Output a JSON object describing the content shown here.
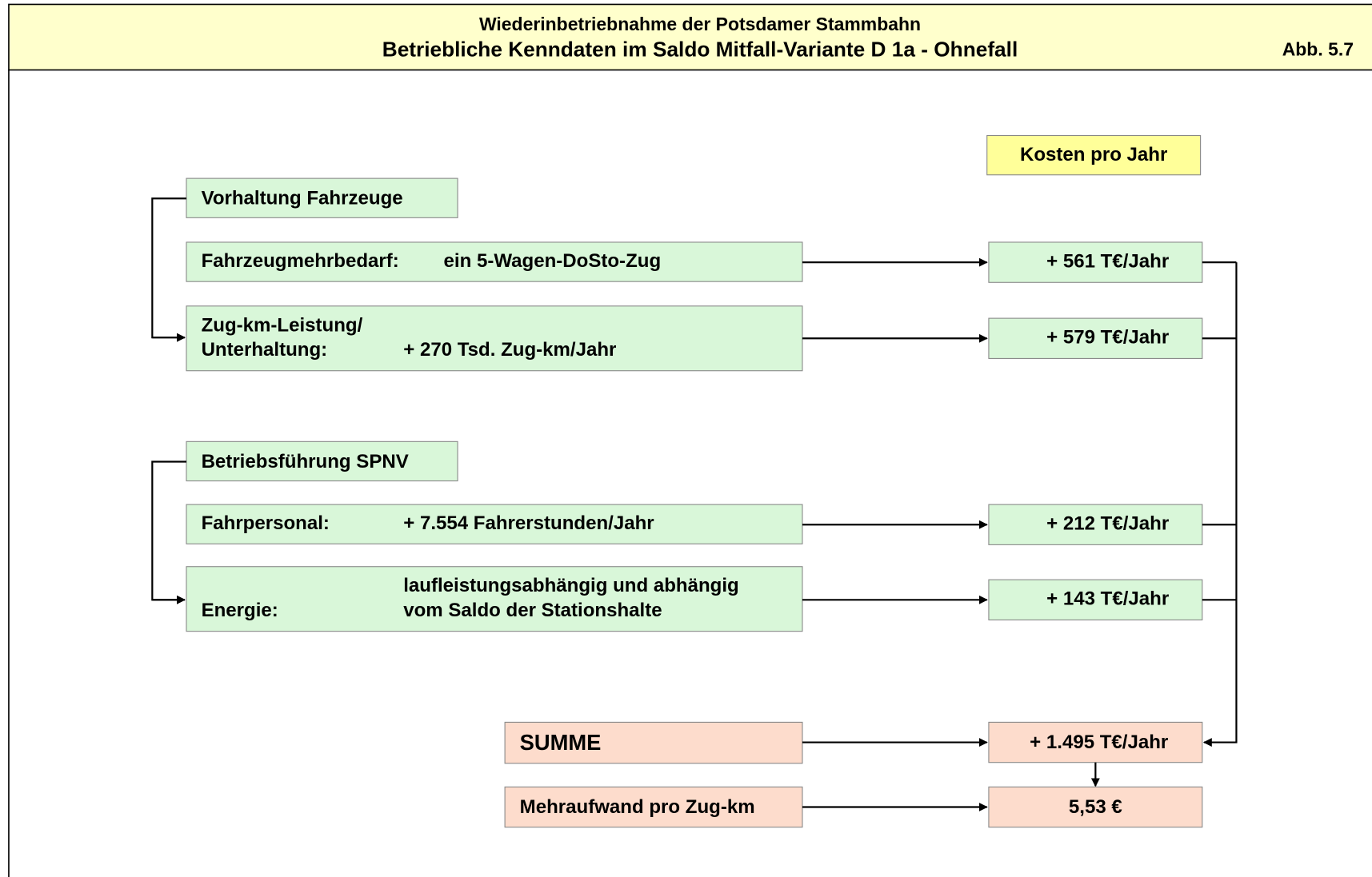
{
  "header": {
    "line1": "Wiederinbetriebnahme der Potsdamer Stammbahn",
    "line2": "Betriebliche Kenndaten im Saldo Mitfall-Variante D 1a - Ohnefall",
    "figure": "Abb. 5.7"
  },
  "cost_header": "Kosten pro Jahr",
  "groups": [
    {
      "title": "Vorhaltung Fahrzeuge",
      "items": [
        {
          "label": [
            "Fahrzeugmehrbedarf:"
          ],
          "detail": [
            "ein 5-Wagen-DoSto-Zug"
          ],
          "cost": "+ 561 T€/Jahr"
        },
        {
          "label": [
            "Zug-km-Leistung/",
            "Unterhaltung:"
          ],
          "detail": [
            "+ 270 Tsd. Zug-km/Jahr"
          ],
          "cost": "+ 579 T€/Jahr"
        }
      ]
    },
    {
      "title": "Betriebsführung SPNV",
      "items": [
        {
          "label": [
            "Fahrpersonal:"
          ],
          "detail": [
            "+ 7.554 Fahrerstunden/Jahr"
          ],
          "cost": "+ 212 T€/Jahr"
        },
        {
          "label": [
            "Energie:"
          ],
          "detail": [
            "laufleistungsabhängig und abhängig",
            "vom Saldo der Stationshalte"
          ],
          "cost": "+ 143 T€/Jahr"
        }
      ]
    }
  ],
  "summe": {
    "label": "SUMME",
    "value": "+ 1.495 T€/Jahr"
  },
  "per_km": {
    "label": "Mehraufwand pro Zug-km",
    "value": "5,53 €"
  }
}
